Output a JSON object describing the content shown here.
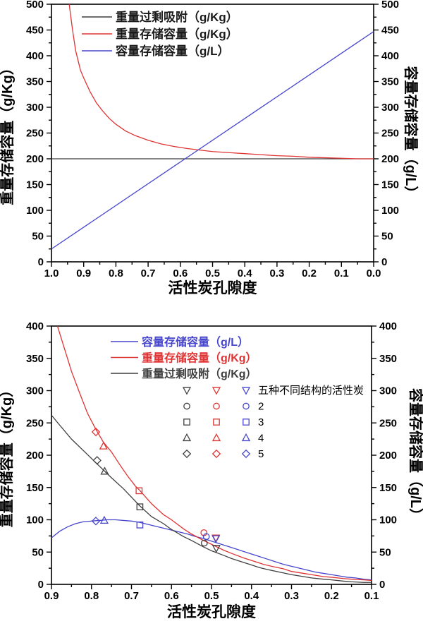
{
  "colors": {
    "black": "#3f3f3f",
    "red": "#e03333",
    "blue": "#4646cc",
    "axis": "#000000",
    "background": "#ffffff"
  },
  "chart_data": [
    {
      "id": "top",
      "type": "line",
      "x_label": "活性炭孔隙度",
      "y_left_label": "重量存储容量（g/Kg）",
      "y_right_label": "容量存储容量（g/L）",
      "x_axis": {
        "min": 1.0,
        "max": 0.0,
        "major": 0.1,
        "minor": 0.05,
        "decimals": 1
      },
      "y_axis": {
        "min": 0,
        "max": 500,
        "major": 50,
        "minor": 25
      },
      "legend": {
        "colored_text": false,
        "items": [
          {
            "label": "重量过剩吸附（g/Kg）",
            "series": "black"
          },
          {
            "label": "重量存储容量（g/Kg）",
            "series": "red"
          },
          {
            "label": "容量存储容量（g/L）",
            "series": "blue"
          }
        ]
      },
      "series": [
        {
          "name": "重量过剩吸附（g/Kg）",
          "series": "black",
          "points": [
            [
              1.0,
              200
            ],
            [
              0.0,
              200
            ]
          ]
        },
        {
          "name": "重量存储容量（g/Kg）",
          "series": "red",
          "points": [
            [
              0.945,
              500
            ],
            [
              0.935,
              452
            ],
            [
              0.925,
              410
            ],
            [
              0.91,
              372
            ],
            [
              0.9,
              357
            ],
            [
              0.88,
              330
            ],
            [
              0.86,
              308
            ],
            [
              0.84,
              292
            ],
            [
              0.82,
              278
            ],
            [
              0.8,
              267
            ],
            [
              0.77,
              254
            ],
            [
              0.74,
              245
            ],
            [
              0.7,
              236
            ],
            [
              0.66,
              229
            ],
            [
              0.62,
              224
            ],
            [
              0.58,
              220
            ],
            [
              0.54,
              217
            ],
            [
              0.5,
              214
            ],
            [
              0.45,
              212
            ],
            [
              0.4,
              210
            ],
            [
              0.35,
              208
            ],
            [
              0.3,
              206
            ],
            [
              0.25,
              205
            ],
            [
              0.2,
              203
            ],
            [
              0.15,
              202
            ],
            [
              0.1,
              201
            ],
            [
              0.05,
              200
            ],
            [
              0.0,
              200
            ]
          ]
        },
        {
          "name": "容量存储容量（g/L）",
          "series": "blue",
          "points": [
            [
              1.0,
              25
            ],
            [
              0.0,
              447
            ]
          ]
        }
      ]
    },
    {
      "id": "bottom",
      "type": "line+scatter",
      "x_label": "活性炭孔隙度",
      "y_left_label": "重量存储容量（g/Kg）",
      "y_right_label": "容量存储容量（g/L）",
      "x_axis": {
        "min": 0.9,
        "max": 0.1,
        "major": 0.1,
        "minor": 0.05,
        "decimals": 1
      },
      "y_axis": {
        "min": 0,
        "max": 400,
        "major": 50,
        "minor": 25
      },
      "legend": {
        "colored_text": true,
        "items": [
          {
            "label": "容量存储容量（g/L）",
            "series": "blue"
          },
          {
            "label": "重量存储容量（g/Kg）",
            "series": "red"
          },
          {
            "label": "重量过剩吸附（g/Kg）",
            "series": "black"
          }
        ]
      },
      "series": [
        {
          "name": "容量存储容量（g/L）",
          "series": "blue",
          "points": [
            [
              0.9,
              72
            ],
            [
              0.88,
              82
            ],
            [
              0.86,
              89
            ],
            [
              0.84,
              94
            ],
            [
              0.82,
              97
            ],
            [
              0.8,
              98
            ],
            [
              0.78,
              99
            ],
            [
              0.76,
              100
            ],
            [
              0.74,
              100
            ],
            [
              0.72,
              99
            ],
            [
              0.7,
              98
            ],
            [
              0.68,
              96
            ],
            [
              0.66,
              93
            ],
            [
              0.64,
              90
            ],
            [
              0.62,
              87
            ],
            [
              0.6,
              84
            ],
            [
              0.58,
              81
            ],
            [
              0.56,
              78
            ],
            [
              0.54,
              74
            ],
            [
              0.52,
              71
            ],
            [
              0.5,
              67
            ],
            [
              0.48,
              63
            ],
            [
              0.46,
              59
            ],
            [
              0.44,
              55
            ],
            [
              0.42,
              51
            ],
            [
              0.4,
              47
            ],
            [
              0.38,
              43
            ],
            [
              0.36,
              39
            ],
            [
              0.34,
              35
            ],
            [
              0.32,
              31
            ],
            [
              0.3,
              28
            ],
            [
              0.28,
              25
            ],
            [
              0.26,
              22
            ],
            [
              0.24,
              19
            ],
            [
              0.22,
              17
            ],
            [
              0.2,
              15
            ],
            [
              0.18,
              13
            ],
            [
              0.16,
              11
            ],
            [
              0.14,
              10
            ],
            [
              0.12,
              8
            ],
            [
              0.1,
              7
            ]
          ]
        },
        {
          "name": "重量存储容量（g/Kg）",
          "series": "red",
          "points": [
            [
              0.885,
              400
            ],
            [
              0.87,
              370
            ],
            [
              0.85,
              330
            ],
            [
              0.83,
              297
            ],
            [
              0.81,
              265
            ],
            [
              0.79,
              241
            ],
            [
              0.77,
              220
            ],
            [
              0.75,
              205
            ],
            [
              0.73,
              186
            ],
            [
              0.71,
              168
            ],
            [
              0.69,
              152
            ],
            [
              0.68,
              146
            ],
            [
              0.65,
              125
            ],
            [
              0.62,
              108
            ],
            [
              0.6,
              100
            ],
            [
              0.57,
              86
            ],
            [
              0.55,
              78
            ],
            [
              0.52,
              68
            ],
            [
              0.5,
              62
            ],
            [
              0.47,
              53
            ],
            [
              0.45,
              48
            ],
            [
              0.42,
              41
            ],
            [
              0.4,
              37
            ],
            [
              0.37,
              31
            ],
            [
              0.35,
              28
            ],
            [
              0.32,
              24
            ],
            [
              0.3,
              20
            ],
            [
              0.27,
              17
            ],
            [
              0.25,
              15
            ],
            [
              0.22,
              12
            ],
            [
              0.2,
              11
            ],
            [
              0.17,
              9
            ],
            [
              0.15,
              8
            ],
            [
              0.12,
              7
            ],
            [
              0.1,
              6
            ]
          ]
        },
        {
          "name": "重量过剩吸附（g/Kg）",
          "series": "black",
          "points": [
            [
              0.9,
              262
            ],
            [
              0.88,
              247
            ],
            [
              0.85,
              225
            ],
            [
              0.82,
              207
            ],
            [
              0.8,
              195
            ],
            [
              0.78,
              183
            ],
            [
              0.75,
              165
            ],
            [
              0.72,
              148
            ],
            [
              0.7,
              135
            ],
            [
              0.68,
              122
            ],
            [
              0.65,
              105
            ],
            [
              0.62,
              94
            ],
            [
              0.6,
              85
            ],
            [
              0.57,
              74
            ],
            [
              0.55,
              68
            ],
            [
              0.52,
              58
            ],
            [
              0.5,
              52
            ],
            [
              0.47,
              45
            ],
            [
              0.45,
              40
            ],
            [
              0.42,
              34
            ],
            [
              0.4,
              30
            ],
            [
              0.38,
              26
            ],
            [
              0.36,
              23
            ],
            [
              0.33,
              19
            ],
            [
              0.3,
              15
            ],
            [
              0.27,
              12
            ],
            [
              0.25,
              10
            ],
            [
              0.22,
              8
            ],
            [
              0.2,
              7
            ],
            [
              0.17,
              5
            ],
            [
              0.15,
              4
            ],
            [
              0.12,
              3
            ],
            [
              0.1,
              3
            ]
          ]
        }
      ],
      "scatter_groups": [
        {
          "label": "五种不同结构的活性炭",
          "shape": "triangle-down",
          "points": [
            {
              "series": "black",
              "x": 0.488,
              "y": 56
            },
            {
              "series": "red",
              "x": 0.489,
              "y": 72
            },
            {
              "series": "blue",
              "x": 0.489,
              "y": 71
            }
          ]
        },
        {
          "label": "2",
          "shape": "circle",
          "points": [
            {
              "series": "black",
              "x": 0.518,
              "y": 64
            },
            {
              "series": "red",
              "x": 0.519,
              "y": 80
            },
            {
              "series": "blue",
              "x": 0.513,
              "y": 74
            }
          ]
        },
        {
          "label": "3",
          "shape": "square",
          "points": [
            {
              "series": "black",
              "x": 0.679,
              "y": 120
            },
            {
              "series": "red",
              "x": 0.681,
              "y": 145
            },
            {
              "series": "blue",
              "x": 0.679,
              "y": 92
            }
          ]
        },
        {
          "label": "4",
          "shape": "triangle-up",
          "points": [
            {
              "series": "black",
              "x": 0.767,
              "y": 175
            },
            {
              "series": "red",
              "x": 0.77,
              "y": 214
            },
            {
              "series": "blue",
              "x": 0.768,
              "y": 99
            }
          ]
        },
        {
          "label": "5",
          "shape": "diamond",
          "points": [
            {
              "series": "black",
              "x": 0.786,
              "y": 192
            },
            {
              "series": "red",
              "x": 0.789,
              "y": 236
            },
            {
              "series": "blue",
              "x": 0.789,
              "y": 98
            }
          ]
        }
      ],
      "marker_legend": {
        "columns": [
          "black",
          "red",
          "blue"
        ],
        "rows": [
          {
            "shape": "triangle-down",
            "label": "五种不同结构的活性炭"
          },
          {
            "shape": "circle",
            "label": "2"
          },
          {
            "shape": "square",
            "label": "3"
          },
          {
            "shape": "triangle-up",
            "label": "4"
          },
          {
            "shape": "diamond",
            "label": "5"
          }
        ]
      }
    }
  ]
}
